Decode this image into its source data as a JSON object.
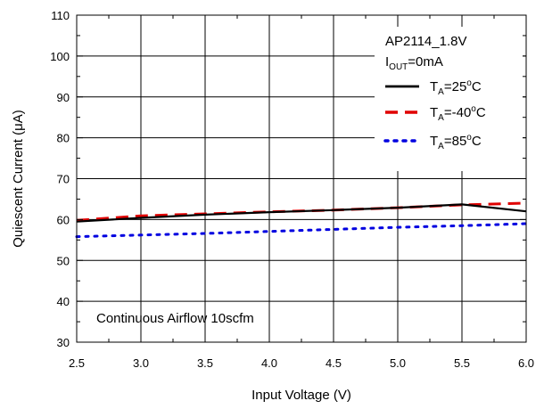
{
  "chart_data": {
    "type": "line",
    "xlabel": "Input Voltage (V)",
    "ylabel": "Quiescent Current (μA)",
    "xlim": [
      2.5,
      6.0
    ],
    "ylim": [
      30,
      110
    ],
    "xticks": [
      2.5,
      3.0,
      3.5,
      4.0,
      4.5,
      5.0,
      5.5,
      6.0
    ],
    "xtick_labels": [
      "2.5",
      "3.0",
      "3.5",
      "4.0",
      "4.5",
      "5.0",
      "5.5",
      "6.0"
    ],
    "yticks": [
      30,
      40,
      50,
      60,
      70,
      80,
      90,
      100,
      110
    ],
    "ytick_labels": [
      "30",
      "40",
      "50",
      "60",
      "70",
      "80",
      "90",
      "100",
      "110"
    ],
    "grid": true,
    "legend_placement": "top-right",
    "legend_header": {
      "line1": "AP2114_1.8V",
      "line2_main": "I",
      "line2_sub": "OUT",
      "line2_rest": "=0mA"
    },
    "annotation": "Continuous Airflow 10scfm",
    "series": [
      {
        "name": "TA=25°C",
        "label_main": "T",
        "label_sub": "A",
        "label_value": "=25",
        "label_sup": "o",
        "label_unit": "C",
        "color": "#000000",
        "style": "solid",
        "x": [
          2.5,
          3.0,
          3.5,
          4.0,
          4.5,
          5.0,
          5.5,
          6.0
        ],
        "y": [
          59.5,
          60.4,
          61.2,
          61.8,
          62.3,
          62.9,
          63.7,
          62.0
        ]
      },
      {
        "name": "TA=-40°C",
        "label_main": "T",
        "label_sub": "A",
        "label_value": "=-40",
        "label_sup": "o",
        "label_unit": "C",
        "color": "#e00000",
        "style": "dashed",
        "x": [
          2.5,
          3.0,
          3.5,
          4.0,
          4.5,
          5.0,
          5.5,
          6.0
        ],
        "y": [
          59.8,
          60.9,
          61.4,
          61.9,
          62.3,
          62.9,
          63.6,
          64.0
        ]
      },
      {
        "name": "TA=85°C",
        "label_main": "T",
        "label_sub": "A",
        "label_value": "=85",
        "label_sup": "o",
        "label_unit": "C",
        "color": "#0000e0",
        "style": "dotted",
        "x": [
          2.5,
          3.0,
          3.5,
          4.0,
          4.5,
          5.0,
          5.5,
          6.0
        ],
        "y": [
          55.8,
          56.2,
          56.6,
          57.1,
          57.6,
          58.1,
          58.5,
          59.0
        ]
      }
    ]
  }
}
